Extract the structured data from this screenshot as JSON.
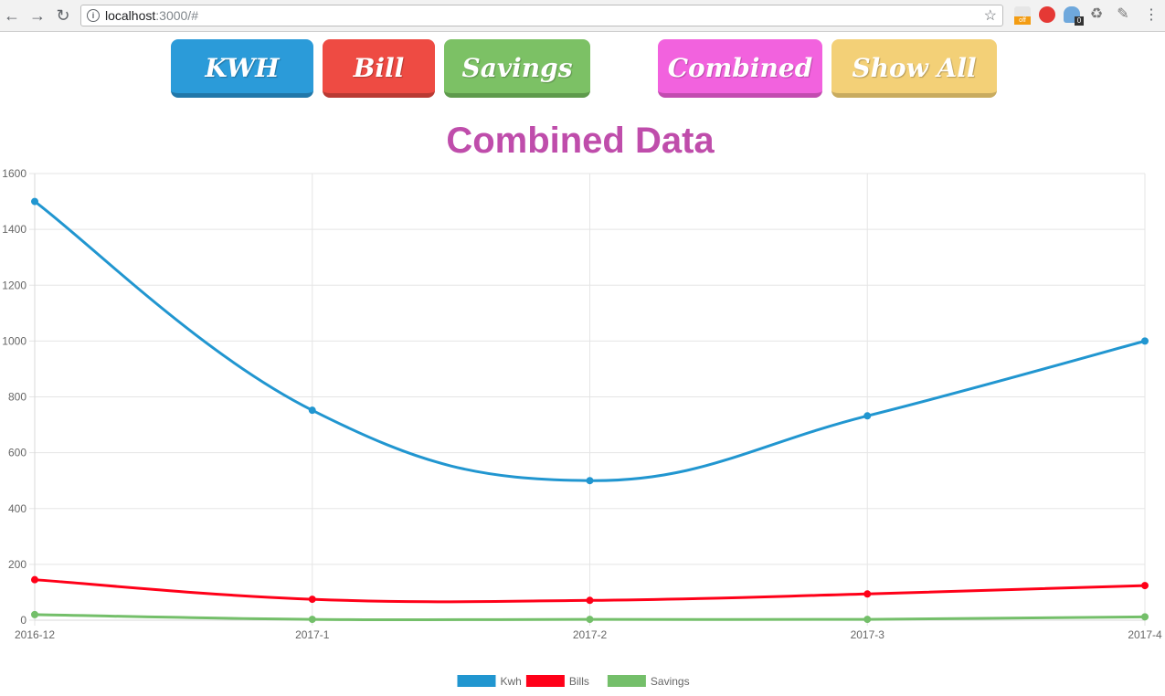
{
  "browser": {
    "url_host": "localhost",
    "url_rest": ":3000/#",
    "ext_badge_off": "off",
    "ext_badge_count": "0"
  },
  "buttons": {
    "kwh": "KWH",
    "bill": "Bill",
    "savings": "Savings",
    "combined": "Combined",
    "show_all": "Show All"
  },
  "chart_data": {
    "type": "line",
    "title": "Combined Data",
    "categories": [
      "2016-12",
      "2017-1",
      "2017-2",
      "2017-3",
      "2017-4"
    ],
    "ylim": [
      0,
      1600
    ],
    "yticks": [
      0,
      200,
      400,
      600,
      800,
      1000,
      1200,
      1400,
      1600
    ],
    "grid": true,
    "legend_position": "bottom",
    "series": [
      {
        "name": "Kwh",
        "color": "#2196d0",
        "values": [
          1500,
          752,
          500,
          732,
          1000
        ]
      },
      {
        "name": "Bills",
        "color": "#ff0018",
        "values": [
          145,
          75,
          71,
          94,
          124
        ]
      },
      {
        "name": "Savings",
        "color": "#74bf6a",
        "values": [
          20,
          3,
          3,
          3,
          12
        ]
      }
    ]
  }
}
